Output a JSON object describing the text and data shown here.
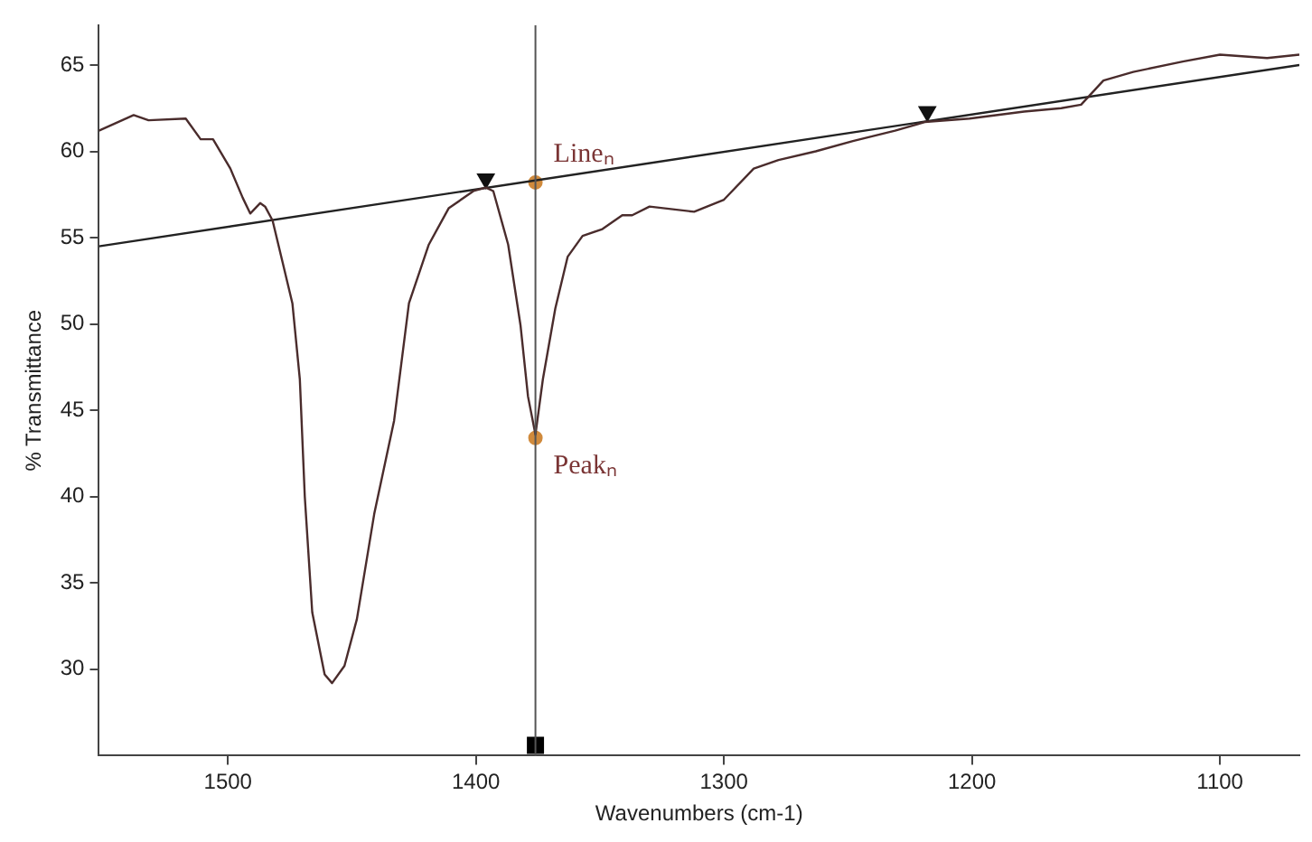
{
  "chart_data": {
    "type": "line",
    "xlabel": "Wavenumbers (cm-1)",
    "ylabel": "% Transmittance",
    "xlim": [
      1552,
      1068
    ],
    "ylim": [
      25,
      67.3
    ],
    "xticks": [
      1500,
      1400,
      1300,
      1200,
      1100
    ],
    "yticks": [
      30,
      35,
      40,
      45,
      50,
      55,
      60,
      65
    ],
    "grid": false,
    "legend": false,
    "marker": "none",
    "line_style": "solid",
    "series": [
      {
        "color": "#4a2c2c",
        "x": [
          1552,
          1538,
          1532,
          1517,
          1511,
          1506,
          1499,
          1494,
          1491,
          1487,
          1485,
          1482,
          1478,
          1474,
          1471,
          1469,
          1466,
          1461,
          1458,
          1453,
          1448,
          1441,
          1433,
          1427,
          1419,
          1411,
          1401,
          1396,
          1393,
          1387,
          1382,
          1379,
          1376,
          1373,
          1368,
          1363,
          1357,
          1349,
          1341,
          1337,
          1330,
          1312,
          1300,
          1288,
          1278,
          1263,
          1248,
          1231,
          1219,
          1201,
          1179,
          1164,
          1156,
          1147,
          1135,
          1115,
          1100,
          1081,
          1068
        ],
        "values": [
          61.2,
          62.1,
          61.8,
          61.9,
          60.7,
          60.7,
          59.0,
          57.3,
          56.4,
          57.0,
          56.8,
          56.0,
          53.6,
          51.2,
          46.8,
          40.0,
          33.3,
          29.7,
          29.2,
          30.2,
          32.9,
          39.0,
          44.4,
          51.2,
          54.6,
          56.7,
          57.7,
          57.9,
          57.7,
          54.6,
          49.9,
          45.8,
          43.6,
          46.8,
          50.9,
          53.9,
          55.1,
          55.5,
          56.3,
          56.3,
          56.8,
          56.5,
          57.2,
          59.0,
          59.5,
          60.0,
          60.6,
          61.2,
          61.7,
          61.9,
          62.3,
          62.5,
          62.7,
          64.1,
          64.6,
          65.2,
          65.6,
          65.4,
          65.6
        ]
      },
      {
        "color": "#222222",
        "x": [
          1552,
          1068
        ],
        "values": [
          54.5,
          65.0
        ]
      },
      {
        "type": "scatter",
        "color": "#111111",
        "marker": "triangle",
        "x": [
          1396,
          1218
        ],
        "values": [
          58.4,
          62.3
        ]
      },
      {
        "type": "scatter",
        "color": "#000000",
        "marker": "square",
        "x": [
          1376
        ],
        "values": [
          25.6
        ]
      },
      {
        "type": "scatter",
        "color": "#d08a3c",
        "marker": "circle",
        "x": [
          1376,
          1376
        ],
        "values": [
          58.2,
          43.4
        ]
      }
    ],
    "ref_lines": [
      {
        "axis": "x",
        "value": 1376,
        "color": "#555555"
      }
    ],
    "annotations": [
      {
        "text": "Lineₙ",
        "x": 1376,
        "y": 58.2
      },
      {
        "text": "Peakₙ",
        "x": 1376,
        "y": 43.4
      }
    ]
  }
}
